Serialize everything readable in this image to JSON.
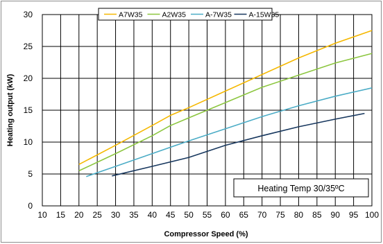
{
  "chart_data": {
    "type": "line",
    "title": "",
    "xlabel": "Compressor Speed (%)",
    "ylabel": "Heating output (kW)",
    "xlim": [
      10,
      100
    ],
    "ylim": [
      0,
      30
    ],
    "x_ticks": [
      "10",
      "15",
      "20",
      "25",
      "30",
      "35",
      "40",
      "45",
      "50",
      "55",
      "60",
      "65",
      "70",
      "75",
      "80",
      "85",
      "90",
      "95",
      "100"
    ],
    "y_ticks": [
      "0",
      "5",
      "10",
      "15",
      "20",
      "25",
      "30"
    ],
    "grid": true,
    "legend_position": "top",
    "annotation": "Heating Temp 30/35ºC",
    "series": [
      {
        "name": "A7W35",
        "color": "#f5b800",
        "points": [
          [
            20,
            6.5
          ],
          [
            30,
            9.5
          ],
          [
            40,
            12.6
          ],
          [
            45,
            14.2
          ],
          [
            50,
            15.4
          ],
          [
            60,
            18.0
          ],
          [
            70,
            20.6
          ],
          [
            80,
            23.2
          ],
          [
            90,
            25.5
          ],
          [
            100,
            27.5
          ]
        ]
      },
      {
        "name": "A2W35",
        "color": "#8cc63f",
        "points": [
          [
            20,
            5.5
          ],
          [
            30,
            8.2
          ],
          [
            40,
            11.0
          ],
          [
            45,
            12.6
          ],
          [
            50,
            13.8
          ],
          [
            60,
            16.2
          ],
          [
            70,
            18.6
          ],
          [
            80,
            20.5
          ],
          [
            90,
            22.4
          ],
          [
            100,
            23.9
          ]
        ]
      },
      {
        "name": "A-7W35",
        "color": "#4bacc6",
        "points": [
          [
            22,
            4.6
          ],
          [
            30,
            6.2
          ],
          [
            40,
            8.2
          ],
          [
            50,
            10.2
          ],
          [
            60,
            12.1
          ],
          [
            70,
            14.0
          ],
          [
            80,
            15.7
          ],
          [
            90,
            17.2
          ],
          [
            100,
            18.5
          ]
        ]
      },
      {
        "name": "A-15W35",
        "color": "#17375e",
        "points": [
          [
            29,
            4.7
          ],
          [
            40,
            6.2
          ],
          [
            50,
            7.6
          ],
          [
            60,
            9.5
          ],
          [
            70,
            11.0
          ],
          [
            80,
            12.4
          ],
          [
            90,
            13.6
          ],
          [
            98,
            14.5
          ]
        ]
      }
    ]
  }
}
